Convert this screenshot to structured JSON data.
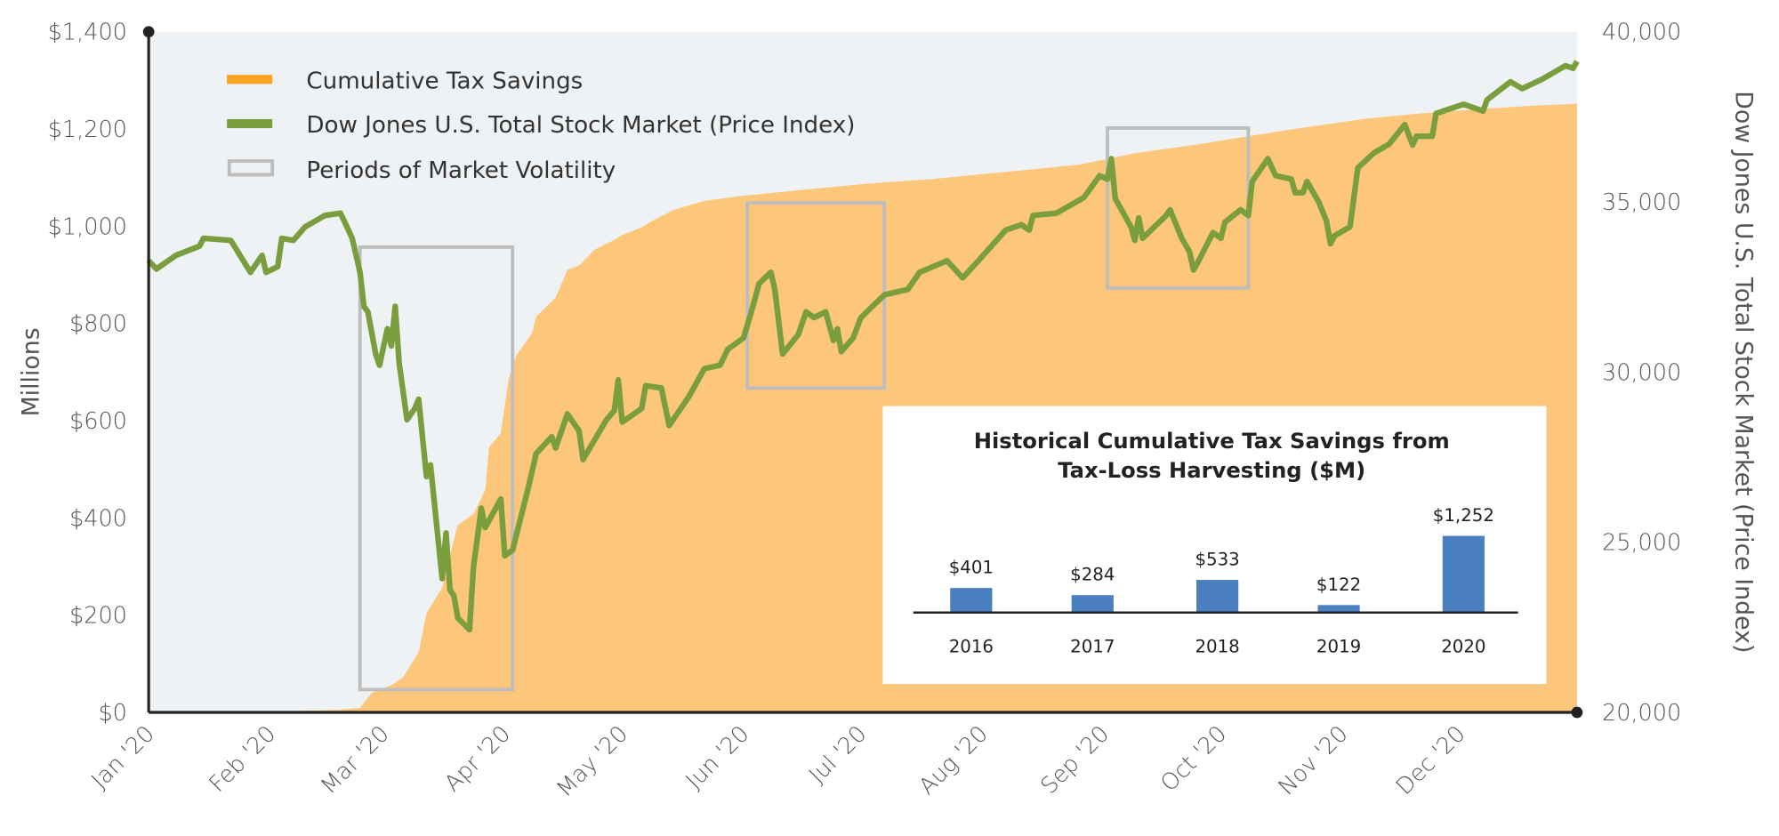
{
  "chart_data": {
    "type": "area+line",
    "legend": {
      "placement": "top-left",
      "items": [
        {
          "label": "Cumulative Tax Savings",
          "color": "#f9a31f",
          "kind": "area"
        },
        {
          "label": "Dow Jones U.S. Total Stock Market (Price Index)",
          "color": "#7a9d3e",
          "kind": "line"
        },
        {
          "label": "Periods of Market Volatility",
          "color": "#bdbdbd",
          "kind": "box"
        }
      ]
    },
    "x_axis": {
      "type": "date",
      "range": [
        "2020-01-01",
        "2020-12-31"
      ],
      "ticks": [
        {
          "date": "2020-01-01",
          "label": "Jan '20"
        },
        {
          "date": "2020-02-01",
          "label": "Feb '20"
        },
        {
          "date": "2020-03-01",
          "label": "Mar '20"
        },
        {
          "date": "2020-04-01",
          "label": "Apr '20"
        },
        {
          "date": "2020-05-01",
          "label": "May '20"
        },
        {
          "date": "2020-06-01",
          "label": "Jun '20"
        },
        {
          "date": "2020-07-01",
          "label": "Jul '20"
        },
        {
          "date": "2020-08-01",
          "label": "Aug '20"
        },
        {
          "date": "2020-09-01",
          "label": "Sep '20"
        },
        {
          "date": "2020-10-01",
          "label": "Oct '20"
        },
        {
          "date": "2020-11-01",
          "label": "Nov '20"
        },
        {
          "date": "2020-12-01",
          "label": "Dec '20"
        }
      ]
    },
    "y_left": {
      "label": "Millions",
      "range": [
        0,
        1400
      ],
      "ticks": [
        {
          "v": 0,
          "label": "$0"
        },
        {
          "v": 200,
          "label": "$200"
        },
        {
          "v": 400,
          "label": "$400"
        },
        {
          "v": 600,
          "label": "$600"
        },
        {
          "v": 800,
          "label": "$800"
        },
        {
          "v": 1000,
          "label": "$1,000"
        },
        {
          "v": 1200,
          "label": "$1,200"
        },
        {
          "v": 1400,
          "label": "$1,400"
        }
      ]
    },
    "y_right": {
      "label": "Dow Jones U.S. Total Stock Market (Price Index)",
      "range": [
        20000,
        40000
      ],
      "ticks": [
        {
          "v": 20000,
          "label": "20,000"
        },
        {
          "v": 25000,
          "label": "25,000"
        },
        {
          "v": 30000,
          "label": "30,000"
        },
        {
          "v": 35000,
          "label": "35,000"
        },
        {
          "v": 40000,
          "label": "40,000"
        }
      ]
    },
    "grid": false,
    "colors": {
      "background": "#eef2f5",
      "area_fill": "#fdc77b",
      "line": "#7a9d3e",
      "box": "#bdbdbd",
      "axis": "#222222",
      "bar": "#4a80c0"
    },
    "series": [
      {
        "name": "Cumulative Tax Savings",
        "axis": "left",
        "type": "area",
        "points": [
          [
            "2020-01-01",
            0
          ],
          [
            "2020-01-18",
            0
          ],
          [
            "2020-01-20",
            1
          ],
          [
            "2020-02-10",
            3
          ],
          [
            "2020-02-18",
            5
          ],
          [
            "2020-02-24",
            9
          ],
          [
            "2020-02-27",
            40
          ],
          [
            "2020-03-03",
            56
          ],
          [
            "2020-03-06",
            72
          ],
          [
            "2020-03-10",
            124
          ],
          [
            "2020-03-12",
            204
          ],
          [
            "2020-03-16",
            257
          ],
          [
            "2020-03-19",
            355
          ],
          [
            "2020-03-20",
            385
          ],
          [
            "2020-03-24",
            408
          ],
          [
            "2020-03-27",
            457
          ],
          [
            "2020-03-28",
            546
          ],
          [
            "2020-03-31",
            574
          ],
          [
            "2020-04-02",
            686
          ],
          [
            "2020-04-04",
            735
          ],
          [
            "2020-04-06",
            757
          ],
          [
            "2020-04-08",
            781
          ],
          [
            "2020-04-09",
            814
          ],
          [
            "2020-04-14",
            853
          ],
          [
            "2020-04-17",
            910
          ],
          [
            "2020-04-20",
            919
          ],
          [
            "2020-04-24",
            952
          ],
          [
            "2020-04-29",
            972
          ],
          [
            "2020-05-01",
            982
          ],
          [
            "2020-05-06",
            998
          ],
          [
            "2020-05-08",
            1008
          ],
          [
            "2020-05-14",
            1033
          ],
          [
            "2020-05-22",
            1052
          ],
          [
            "2020-05-31",
            1062
          ],
          [
            "2020-06-14",
            1073
          ],
          [
            "2020-07-02",
            1087
          ],
          [
            "2020-07-19",
            1097
          ],
          [
            "2020-08-06",
            1111
          ],
          [
            "2020-08-26",
            1127
          ],
          [
            "2020-09-09",
            1150
          ],
          [
            "2020-09-24",
            1167
          ],
          [
            "2020-10-08",
            1185
          ],
          [
            "2020-10-23",
            1204
          ],
          [
            "2020-11-06",
            1220
          ],
          [
            "2020-11-21",
            1232
          ],
          [
            "2020-12-06",
            1241
          ],
          [
            "2020-12-20",
            1248
          ],
          [
            "2020-12-31",
            1252
          ]
        ]
      },
      {
        "name": "Dow Jones U.S. Total Stock Market (Price Index)",
        "axis": "right",
        "type": "line",
        "points": [
          [
            "2020-01-01",
            33270
          ],
          [
            "2020-01-03",
            33030
          ],
          [
            "2020-01-08",
            33430
          ],
          [
            "2020-01-14",
            33700
          ],
          [
            "2020-01-15",
            33930
          ],
          [
            "2020-01-22",
            33870
          ],
          [
            "2020-01-27",
            32930
          ],
          [
            "2020-01-30",
            33430
          ],
          [
            "2020-01-31",
            32930
          ],
          [
            "2020-02-03",
            33100
          ],
          [
            "2020-02-04",
            33930
          ],
          [
            "2020-02-07",
            33870
          ],
          [
            "2020-02-10",
            34270
          ],
          [
            "2020-02-15",
            34600
          ],
          [
            "2020-02-19",
            34670
          ],
          [
            "2020-02-20",
            34430
          ],
          [
            "2020-02-22",
            33930
          ],
          [
            "2020-02-24",
            32930
          ],
          [
            "2020-02-25",
            31930
          ],
          [
            "2020-02-26",
            31770
          ],
          [
            "2020-02-28",
            30530
          ],
          [
            "2020-02-29",
            30200
          ],
          [
            "2020-03-02",
            31270
          ],
          [
            "2020-03-03",
            30770
          ],
          [
            "2020-03-04",
            31930
          ],
          [
            "2020-03-05",
            30270
          ],
          [
            "2020-03-07",
            28600
          ],
          [
            "2020-03-09",
            28930
          ],
          [
            "2020-03-10",
            29200
          ],
          [
            "2020-03-12",
            26930
          ],
          [
            "2020-03-13",
            27270
          ],
          [
            "2020-03-16",
            23930
          ],
          [
            "2020-03-17",
            25270
          ],
          [
            "2020-03-18",
            23600
          ],
          [
            "2020-03-19",
            23430
          ],
          [
            "2020-03-20",
            22770
          ],
          [
            "2020-03-23",
            22430
          ],
          [
            "2020-03-24",
            24270
          ],
          [
            "2020-03-26",
            26000
          ],
          [
            "2020-03-27",
            25430
          ],
          [
            "2020-03-31",
            26270
          ],
          [
            "2020-04-01",
            24600
          ],
          [
            "2020-04-03",
            24770
          ],
          [
            "2020-04-07",
            26600
          ],
          [
            "2020-04-09",
            27600
          ],
          [
            "2020-04-13",
            28100
          ],
          [
            "2020-04-14",
            27770
          ],
          [
            "2020-04-17",
            28770
          ],
          [
            "2020-04-20",
            28270
          ],
          [
            "2020-04-21",
            27430
          ],
          [
            "2020-04-27",
            28600
          ],
          [
            "2020-04-29",
            28870
          ],
          [
            "2020-04-30",
            29770
          ],
          [
            "2020-05-01",
            28530
          ],
          [
            "2020-05-06",
            28930
          ],
          [
            "2020-05-07",
            29600
          ],
          [
            "2020-05-11",
            29530
          ],
          [
            "2020-05-13",
            28430
          ],
          [
            "2020-05-18",
            29270
          ],
          [
            "2020-05-22",
            30100
          ],
          [
            "2020-05-26",
            30200
          ],
          [
            "2020-05-28",
            30670
          ],
          [
            "2020-06-01",
            31000
          ],
          [
            "2020-06-03",
            31770
          ],
          [
            "2020-06-05",
            32600
          ],
          [
            "2020-06-08",
            32930
          ],
          [
            "2020-06-09",
            32430
          ],
          [
            "2020-06-11",
            30530
          ],
          [
            "2020-06-15",
            31100
          ],
          [
            "2020-06-17",
            31770
          ],
          [
            "2020-06-19",
            31600
          ],
          [
            "2020-06-22",
            31770
          ],
          [
            "2020-06-24",
            30930
          ],
          [
            "2020-06-25",
            31270
          ],
          [
            "2020-06-26",
            30600
          ],
          [
            "2020-06-29",
            31000
          ],
          [
            "2020-07-01",
            31600
          ],
          [
            "2020-07-07",
            32270
          ],
          [
            "2020-07-13",
            32430
          ],
          [
            "2020-07-16",
            32930
          ],
          [
            "2020-07-23",
            33270
          ],
          [
            "2020-07-27",
            32770
          ],
          [
            "2020-07-31",
            33270
          ],
          [
            "2020-08-07",
            34170
          ],
          [
            "2020-08-11",
            34330
          ],
          [
            "2020-08-13",
            34170
          ],
          [
            "2020-08-14",
            34600
          ],
          [
            "2020-08-20",
            34670
          ],
          [
            "2020-08-27",
            35130
          ],
          [
            "2020-08-31",
            35770
          ],
          [
            "2020-09-02",
            35670
          ],
          [
            "2020-09-03",
            36270
          ],
          [
            "2020-09-04",
            35100
          ],
          [
            "2020-09-08",
            34270
          ],
          [
            "2020-09-09",
            33870
          ],
          [
            "2020-09-10",
            34530
          ],
          [
            "2020-09-11",
            33930
          ],
          [
            "2020-09-17",
            34600
          ],
          [
            "2020-09-18",
            34770
          ],
          [
            "2020-09-21",
            33930
          ],
          [
            "2020-09-23",
            33530
          ],
          [
            "2020-09-24",
            33000
          ],
          [
            "2020-09-25",
            33200
          ],
          [
            "2020-09-29",
            34100
          ],
          [
            "2020-10-01",
            33930
          ],
          [
            "2020-10-02",
            34400
          ],
          [
            "2020-10-06",
            34770
          ],
          [
            "2020-10-08",
            34600
          ],
          [
            "2020-10-09",
            35600
          ],
          [
            "2020-10-13",
            36270
          ],
          [
            "2020-10-15",
            35770
          ],
          [
            "2020-10-19",
            35670
          ],
          [
            "2020-10-20",
            35270
          ],
          [
            "2020-10-22",
            35270
          ],
          [
            "2020-10-23",
            35600
          ],
          [
            "2020-10-26",
            35000
          ],
          [
            "2020-10-28",
            34430
          ],
          [
            "2020-10-29",
            33770
          ],
          [
            "2020-10-30",
            34000
          ],
          [
            "2020-11-03",
            34270
          ],
          [
            "2020-11-05",
            36000
          ],
          [
            "2020-11-09",
            36430
          ],
          [
            "2020-11-13",
            36700
          ],
          [
            "2020-11-17",
            37270
          ],
          [
            "2020-11-19",
            36670
          ],
          [
            "2020-11-20",
            36930
          ],
          [
            "2020-11-24",
            36930
          ],
          [
            "2020-11-25",
            37600
          ],
          [
            "2020-12-02",
            37870
          ],
          [
            "2020-12-07",
            37670
          ],
          [
            "2020-12-08",
            38000
          ],
          [
            "2020-12-14",
            38530
          ],
          [
            "2020-12-17",
            38330
          ],
          [
            "2020-12-22",
            38600
          ],
          [
            "2020-12-28",
            39000
          ],
          [
            "2020-12-30",
            38930
          ],
          [
            "2020-12-31",
            39130
          ]
        ]
      }
    ],
    "volatility_periods": [
      {
        "start": "2020-02-24",
        "end": "2020-04-03",
        "dow_range": [
          20670,
          33670
        ]
      },
      {
        "start": "2020-06-02",
        "end": "2020-07-07",
        "dow_range": [
          29530,
          34970
        ]
      },
      {
        "start": "2020-09-02",
        "end": "2020-10-08",
        "dow_range": [
          32470,
          37170
        ]
      }
    ],
    "inset": {
      "type": "bar",
      "title_line1": "Historical Cumulative Tax Savings from",
      "title_line2": "Tax-Loss Harvesting ($M)",
      "categories": [
        "2016",
        "2017",
        "2018",
        "2019",
        "2020"
      ],
      "values": [
        401,
        284,
        533,
        122,
        1252
      ],
      "labels": [
        "$401",
        "$284",
        "$533",
        "$122",
        "$1,252"
      ]
    }
  }
}
